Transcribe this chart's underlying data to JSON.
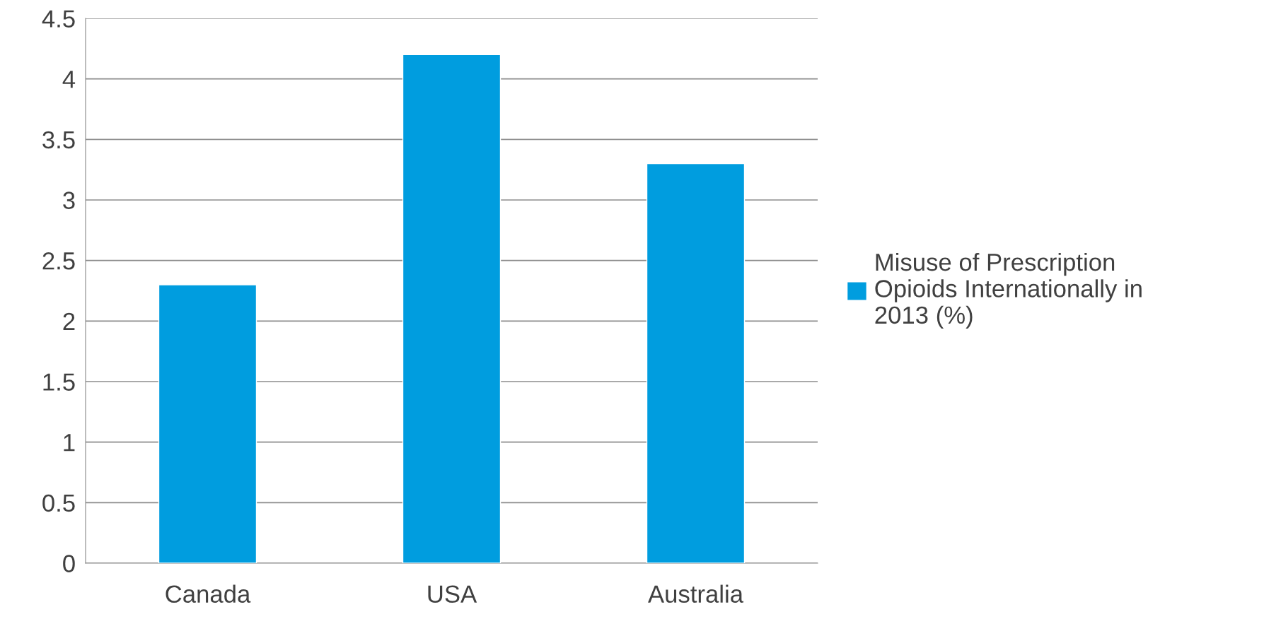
{
  "chart_data": {
    "type": "bar",
    "categories": [
      "Canada",
      "USA",
      "Australia"
    ],
    "series": [
      {
        "name": "Misuse of Prescription\nOpioids Internationally in\n2013 (%)",
        "color": "#009ddf",
        "values": [
          2.3,
          4.2,
          3.3
        ]
      }
    ],
    "ylim": [
      0,
      4.5
    ],
    "yticks": [
      0,
      0.5,
      1,
      1.5,
      2,
      2.5,
      3,
      3.5,
      4,
      4.5
    ],
    "grid": "y",
    "legend": "right"
  }
}
